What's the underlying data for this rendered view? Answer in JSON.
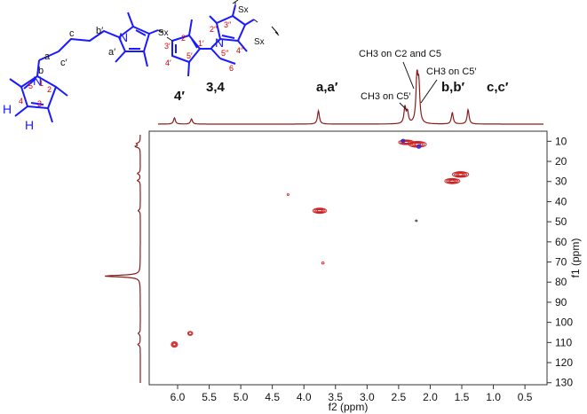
{
  "chart_data": {
    "type": "heatmap",
    "subtype": "2D HSQC NMR spectrum",
    "xlabel": "f2 (ppm)",
    "ylabel": "f1 (ppm)",
    "xlim": [
      6.45,
      0.15
    ],
    "ylim": [
      5,
      131
    ],
    "x_ticks": [
      "6.0",
      "5.5",
      "5.0",
      "4.5",
      "4.0",
      "3.5",
      "3.0",
      "2.5",
      "2.0",
      "1.5",
      "1.0",
      "0.5"
    ],
    "y_ticks": [
      "10",
      "20",
      "30",
      "40",
      "50",
      "60",
      "70",
      "80",
      "90",
      "100",
      "110",
      "120",
      "130"
    ],
    "proton_peaks": [
      {
        "ppm": 6.05,
        "h": 0.12
      },
      {
        "ppm": 5.78,
        "h": 0.1
      },
      {
        "ppm": 3.77,
        "h": 0.26
      },
      {
        "ppm": 2.4,
        "h": 0.32
      },
      {
        "ppm": 2.36,
        "h": 0.22
      },
      {
        "ppm": 2.21,
        "h": 0.9
      },
      {
        "ppm": 2.18,
        "h": 0.7
      },
      {
        "ppm": 1.65,
        "h": 0.22
      },
      {
        "ppm": 1.4,
        "h": 0.28
      }
    ],
    "carbon_peaks": [
      {
        "ppm": 11.2,
        "h": 0.1
      },
      {
        "ppm": 12.6,
        "h": 0.14
      },
      {
        "ppm": 26.0,
        "h": 0.08
      },
      {
        "ppm": 29.5,
        "h": 0.08
      },
      {
        "ppm": 44.5,
        "h": 0.06
      },
      {
        "ppm": 77.0,
        "h": 1.0
      },
      {
        "ppm": 105.5,
        "h": 0.06
      },
      {
        "ppm": 111.0,
        "h": 0.07
      }
    ],
    "cross_peaks": [
      {
        "x": 6.05,
        "y": 111.0,
        "rx": 0.05,
        "ry": 1.4,
        "n": 3,
        "color": "#cc1f1f"
      },
      {
        "x": 5.8,
        "y": 105.5,
        "rx": 0.04,
        "ry": 1.0,
        "n": 2,
        "color": "#cc1f1f"
      },
      {
        "x": 3.75,
        "y": 44.5,
        "rx": 0.11,
        "ry": 1.3,
        "n": 4,
        "color": "#cc1f1f"
      },
      {
        "x": 4.25,
        "y": 36.5,
        "rx": 0.015,
        "ry": 0.4,
        "n": 1,
        "color": "#cc1f1f"
      },
      {
        "x": 3.7,
        "y": 70.5,
        "rx": 0.02,
        "ry": 0.5,
        "n": 1,
        "color": "#cc1f1f"
      },
      {
        "x": 2.22,
        "y": 49.5,
        "rx": 0.015,
        "ry": 0.4,
        "n": 1,
        "color": "#333333"
      },
      {
        "x": 2.38,
        "y": 10.5,
        "rx": 0.12,
        "ry": 1.2,
        "n": 4,
        "color": "#cc1f1f"
      },
      {
        "x": 2.43,
        "y": 9.8,
        "rx": 0.03,
        "ry": 0.8,
        "n": 2,
        "color": "#2a2adf"
      },
      {
        "x": 2.2,
        "y": 11.5,
        "rx": 0.14,
        "ry": 1.5,
        "n": 4,
        "color": "#cc1f1f"
      },
      {
        "x": 2.18,
        "y": 12.6,
        "rx": 0.03,
        "ry": 0.9,
        "n": 2,
        "color": "#2a2adf"
      },
      {
        "x": 1.52,
        "y": 26.5,
        "rx": 0.13,
        "ry": 1.4,
        "n": 4,
        "color": "#cc1f1f"
      },
      {
        "x": 1.65,
        "y": 29.8,
        "rx": 0.12,
        "ry": 1.3,
        "n": 4,
        "color": "#cc1f1f"
      }
    ],
    "peak_labels": [
      {
        "text": "4′",
        "x": 6.05
      },
      {
        "text": "3,4",
        "x": 5.78
      },
      {
        "text": "a,a′",
        "x": 3.77
      },
      {
        "text": "b,b′",
        "x": 1.65
      },
      {
        "text": "c,c′",
        "x": 1.4
      }
    ],
    "assignment_labels": [
      {
        "text": "CH3 on C2 and C5"
      },
      {
        "text": "CH3 on C5′"
      },
      {
        "text": "CH3 on C5′"
      }
    ]
  },
  "structure": {
    "atoms": [
      "N",
      "N",
      "N",
      "H",
      "H"
    ],
    "sx_labels": [
      "Sx",
      "Sx",
      "Sx"
    ],
    "chain_labels": [
      "a",
      "b",
      "c",
      "c′",
      "b′",
      "a′"
    ],
    "ring_numbers": [
      "1",
      "2",
      "3",
      "4",
      "5",
      "1′",
      "2′",
      "3′",
      "4′",
      "5′",
      "2″",
      "3″",
      "4″",
      "5″"
    ],
    "subscript": "6"
  },
  "colors": {
    "spectrum": "#8b1c1c",
    "contour": "#cc1f1f",
    "contour_alt": "#2a2adf",
    "structure_blue": "#1a1aff",
    "ring_number_red": "#e00000"
  }
}
